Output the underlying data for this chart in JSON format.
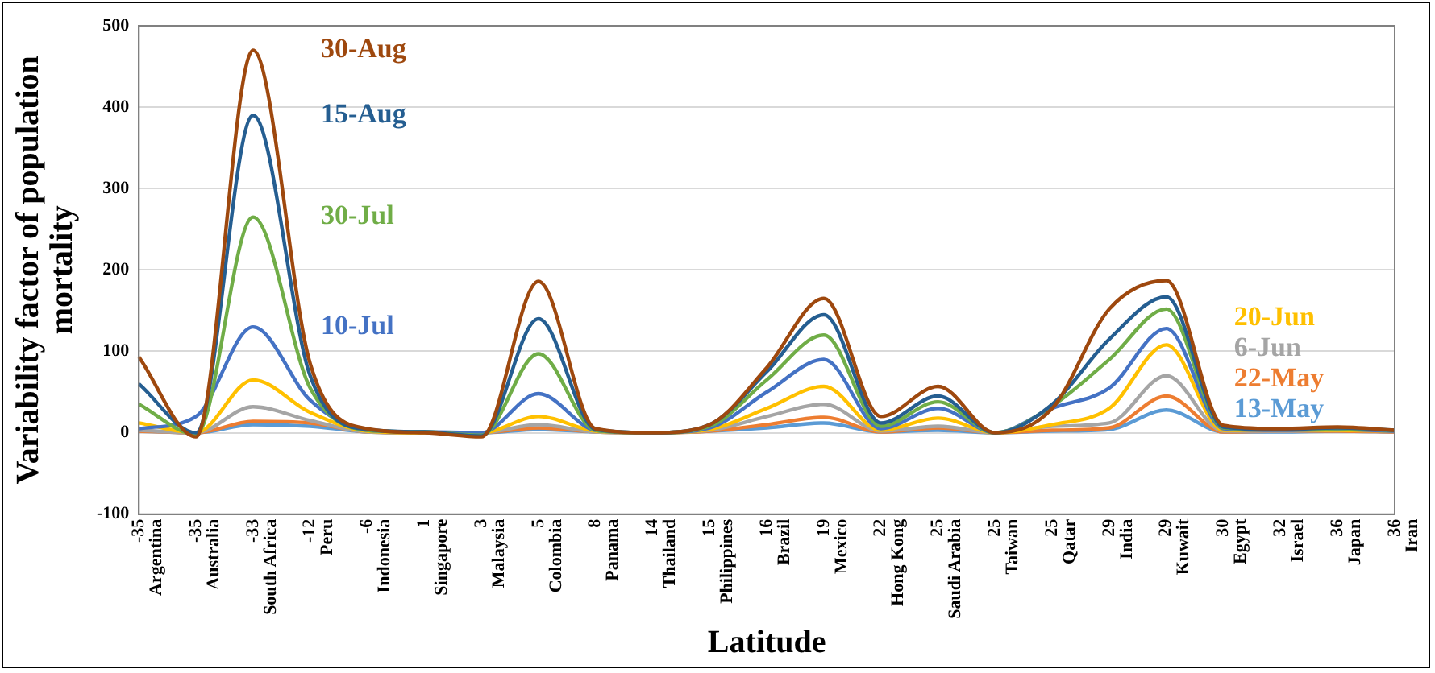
{
  "chart_data": {
    "type": "line",
    "xlabel": "Latitude",
    "ylabel": "Variability factor of population mortality",
    "categories": [
      "-35 Argentina",
      "-35 Australia",
      "-33 South Africa",
      "-12 Peru",
      "-6 Indonesia",
      "1 Singapore",
      "3 Malaysia",
      "5 Colombia",
      "8 Panama",
      "14 Thailand",
      "15 Philippines",
      "16 Brazil",
      "19 Mexico",
      "22 Hong Kong",
      "25 Saudi Arabia",
      "25 Taiwan",
      "25 Qatar",
      "29 India",
      "29 Kuwait",
      "30 Egypt",
      "32 Israel",
      "36 Japan",
      "36 Iran"
    ],
    "ylim": [
      -100,
      500
    ],
    "yticks": [
      -100,
      0,
      100,
      200,
      300,
      400,
      500
    ],
    "grid": "y",
    "legend": false,
    "marker": "none",
    "line_style": "solid",
    "series": [
      {
        "name": "30-Aug",
        "color": "#9e480e",
        "values": [
          93,
          -5,
          470,
          85,
          5,
          0,
          -5,
          186,
          5,
          0,
          10,
          80,
          165,
          20,
          57,
          0,
          30,
          152,
          187,
          9,
          5,
          7,
          3
        ]
      },
      {
        "name": "15-Aug",
        "color": "#255e91",
        "values": [
          60,
          0,
          390,
          70,
          4,
          1,
          -4,
          140,
          4,
          0,
          10,
          75,
          145,
          12,
          45,
          0,
          35,
          115,
          167,
          7,
          4,
          6,
          3
        ]
      },
      {
        "name": "30-Jul",
        "color": "#70ad47",
        "values": [
          35,
          -2,
          265,
          55,
          3,
          1,
          -3,
          97,
          3,
          0,
          8,
          65,
          120,
          8,
          38,
          0,
          33,
          90,
          152,
          6,
          4,
          5,
          3
        ]
      },
      {
        "name": "10-Jul",
        "color": "#4472c4",
        "values": [
          5,
          20,
          130,
          40,
          3,
          1,
          0,
          48,
          3,
          0,
          6,
          50,
          90,
          5,
          30,
          0,
          30,
          55,
          128,
          5,
          3,
          4,
          2
        ]
      },
      {
        "name": "20-Jun",
        "color": "#ffc000",
        "values": [
          12,
          0,
          65,
          25,
          2,
          0,
          0,
          20,
          2,
          0,
          4,
          30,
          57,
          3,
          18,
          0,
          10,
          30,
          108,
          3,
          3,
          3,
          2
        ]
      },
      {
        "name": "6-Jun",
        "color": "#a5a5a5",
        "values": [
          3,
          0,
          32,
          15,
          1,
          0,
          0,
          10,
          1,
          0,
          3,
          20,
          35,
          2,
          8,
          0,
          8,
          12,
          70,
          2,
          2,
          3,
          2
        ]
      },
      {
        "name": "22-May",
        "color": "#ed7d31",
        "values": [
          2,
          0,
          14,
          12,
          1,
          0,
          0,
          6,
          1,
          0,
          2,
          10,
          19,
          1,
          6,
          0,
          3,
          6,
          45,
          1,
          2,
          2,
          1
        ]
      },
      {
        "name": "13-May",
        "color": "#5b9bd5",
        "values": [
          2,
          0,
          10,
          8,
          1,
          0,
          0,
          4,
          1,
          0,
          2,
          6,
          12,
          1,
          3,
          0,
          2,
          4,
          28,
          1,
          1,
          2,
          1
        ]
      }
    ]
  }
}
